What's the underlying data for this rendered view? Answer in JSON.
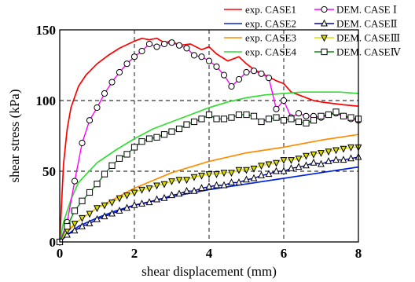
{
  "chart_data": {
    "type": "line",
    "title": "",
    "xlabel": "shear displacement  (mm)",
    "ylabel": "shear stress (kPa)",
    "xlim": [
      0,
      8
    ],
    "ylim": [
      0,
      150
    ],
    "xticks": [
      0,
      2,
      4,
      6,
      8
    ],
    "yticks": [
      0,
      50,
      100,
      150
    ],
    "grid": "dashed",
    "legend_position": "top-right",
    "series": [
      {
        "name": "exp. CASE1",
        "color": "#ff0000",
        "marker": "none",
        "x": [
          0,
          0.1,
          0.2,
          0.3,
          0.5,
          0.7,
          1.0,
          1.3,
          1.6,
          2.0,
          2.2,
          2.4,
          2.6,
          2.8,
          3.0,
          3.2,
          3.5,
          3.8,
          4.0,
          4.2,
          4.5,
          4.8,
          5.0,
          5.2,
          5.5,
          5.8,
          6.0,
          6.2,
          6.5,
          6.8,
          7.0,
          7.3,
          7.6,
          8.0
        ],
        "y": [
          0,
          55,
          80,
          95,
          110,
          118,
          126,
          132,
          137,
          142,
          144,
          143,
          144,
          141,
          142,
          139,
          140,
          136,
          138,
          133,
          128,
          131,
          126,
          122,
          118,
          114,
          112,
          106,
          103,
          100,
          99,
          98,
          97,
          96
        ]
      },
      {
        "name": "exp. CASE2",
        "color": "#0022dd",
        "marker": "none",
        "x": [
          0,
          0.2,
          0.5,
          1.0,
          1.5,
          2.0,
          3.0,
          4.0,
          5.0,
          6.0,
          7.0,
          8.0
        ],
        "y": [
          0,
          5,
          11,
          17,
          22,
          26,
          32,
          37,
          41,
          45,
          49,
          53
        ]
      },
      {
        "name": "exp. CASE3",
        "color": "#ff8c00",
        "marker": "none",
        "x": [
          0,
          0.2,
          0.5,
          1.0,
          1.5,
          2.0,
          3.0,
          4.0,
          5.0,
          6.0,
          7.0,
          8.0
        ],
        "y": [
          0,
          7,
          15,
          24,
          31,
          38,
          49,
          57,
          63,
          67,
          72,
          76
        ]
      },
      {
        "name": "exp. CASE4",
        "color": "#33dd33",
        "marker": "none",
        "x": [
          0,
          0.1,
          0.3,
          0.5,
          1.0,
          1.5,
          2.0,
          2.5,
          3.0,
          3.5,
          4.0,
          4.5,
          5.0,
          5.5,
          6.0,
          6.5,
          7.0,
          7.5,
          8.0
        ],
        "y": [
          0,
          14,
          30,
          42,
          56,
          65,
          73,
          80,
          85,
          90,
          95,
          99,
          102,
          104,
          105,
          106,
          106,
          106,
          105
        ]
      },
      {
        "name": "DEM. CASE Ⅰ",
        "color": "#ff00ff",
        "marker": "circle",
        "x": [
          0.0,
          0.2,
          0.4,
          0.6,
          0.8,
          1.0,
          1.2,
          1.4,
          1.6,
          1.8,
          2.0,
          2.2,
          2.4,
          2.6,
          2.8,
          3.0,
          3.2,
          3.4,
          3.6,
          3.8,
          4.0,
          4.2,
          4.4,
          4.6,
          4.8,
          5.0,
          5.2,
          5.4,
          5.6,
          5.8,
          6.0,
          6.2,
          6.4,
          6.6,
          6.8,
          7.0,
          7.2,
          7.4,
          7.6,
          7.8,
          8.0
        ],
        "y": [
          0,
          14,
          43,
          70,
          86,
          95,
          105,
          113,
          120,
          126,
          131,
          135,
          140,
          138,
          140,
          141,
          139,
          137,
          132,
          131,
          128,
          124,
          118,
          110,
          115,
          120,
          121,
          119,
          116,
          94,
          100,
          88,
          91,
          89,
          89,
          88,
          90,
          91,
          89,
          87,
          86
        ]
      },
      {
        "name": "DEM. CASEⅡ",
        "color": "#0000aa",
        "marker": "triangle-up",
        "x": [
          0.0,
          0.2,
          0.4,
          0.6,
          0.8,
          1.0,
          1.2,
          1.4,
          1.6,
          1.8,
          2.0,
          2.2,
          2.4,
          2.6,
          2.8,
          3.0,
          3.2,
          3.4,
          3.6,
          3.8,
          4.0,
          4.2,
          4.4,
          4.6,
          4.8,
          5.0,
          5.2,
          5.4,
          5.6,
          5.8,
          6.0,
          6.2,
          6.4,
          6.6,
          6.8,
          7.0,
          7.2,
          7.4,
          7.6,
          7.8,
          8.0
        ],
        "y": [
          0,
          5,
          8,
          11,
          13,
          16,
          18,
          20,
          22,
          24,
          26,
          27,
          28,
          30,
          31,
          33,
          34,
          36,
          36,
          38,
          39,
          40,
          40,
          42,
          42,
          44,
          45,
          47,
          48,
          50,
          50,
          52,
          53,
          54,
          56,
          55,
          57,
          58,
          58,
          59,
          60
        ]
      },
      {
        "name": "DEM. CASEⅢ",
        "color": "#dddd00",
        "marker": "triangle-down",
        "x": [
          0.0,
          0.2,
          0.4,
          0.6,
          0.8,
          1.0,
          1.2,
          1.4,
          1.6,
          1.8,
          2.0,
          2.2,
          2.4,
          2.6,
          2.8,
          3.0,
          3.2,
          3.4,
          3.6,
          3.8,
          4.0,
          4.2,
          4.4,
          4.6,
          4.8,
          5.0,
          5.2,
          5.4,
          5.6,
          5.8,
          6.0,
          6.2,
          6.4,
          6.6,
          6.8,
          7.0,
          7.2,
          7.4,
          7.6,
          7.8,
          8.0
        ],
        "y": [
          0,
          8,
          13,
          17,
          20,
          24,
          26,
          28,
          31,
          33,
          35,
          37,
          38,
          40,
          41,
          43,
          44,
          44,
          46,
          47,
          48,
          48,
          49,
          49,
          51,
          51,
          52,
          54,
          55,
          56,
          58,
          58,
          59,
          61,
          62,
          63,
          64,
          65,
          66,
          67,
          67
        ]
      },
      {
        "name": "DEM. CASEⅣ",
        "color": "#118811",
        "marker": "square",
        "x": [
          0.0,
          0.2,
          0.4,
          0.6,
          0.8,
          1.0,
          1.2,
          1.4,
          1.6,
          1.8,
          2.0,
          2.2,
          2.4,
          2.6,
          2.8,
          3.0,
          3.2,
          3.4,
          3.6,
          3.8,
          4.0,
          4.2,
          4.4,
          4.6,
          4.8,
          5.0,
          5.2,
          5.4,
          5.6,
          5.8,
          6.0,
          6.2,
          6.4,
          6.6,
          6.8,
          7.0,
          7.2,
          7.4,
          7.6,
          7.8,
          8.0
        ],
        "y": [
          0,
          11,
          22,
          29,
          35,
          41,
          48,
          54,
          59,
          62,
          67,
          71,
          73,
          74,
          76,
          78,
          80,
          83,
          85,
          87,
          90,
          87,
          87,
          88,
          90,
          90,
          89,
          85,
          87,
          88,
          86,
          87,
          85,
          84,
          86,
          89,
          90,
          92,
          89,
          88,
          87
        ]
      }
    ]
  }
}
